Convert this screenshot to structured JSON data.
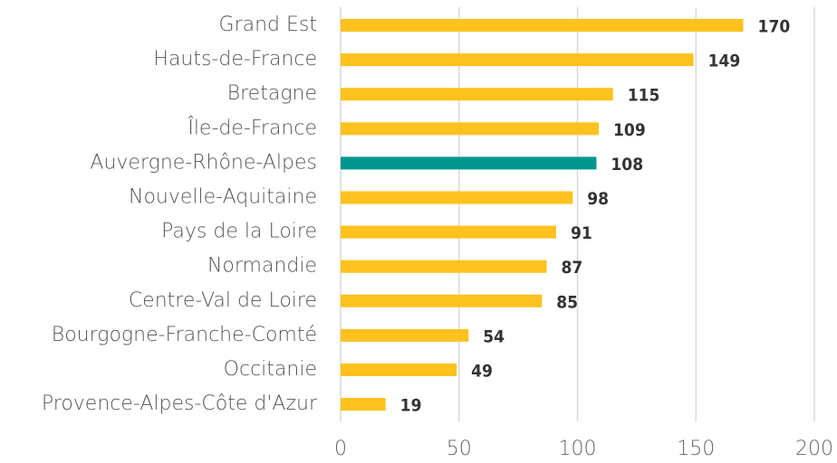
{
  "chart_data": {
    "type": "bar",
    "orientation": "horizontal",
    "categories": [
      "Grand Est",
      "Hauts-de-France",
      "Bretagne",
      "Île-de-France",
      "Auvergne-Rhône-Alpes",
      "Nouvelle-Aquitaine",
      "Pays de la Loire",
      "Normandie",
      "Centre-Val de Loire",
      "Bourgogne-Franche-Comté",
      "Occitanie",
      "Provence-Alpes-Côte d'Azur"
    ],
    "values": [
      170,
      149,
      115,
      109,
      108,
      98,
      91,
      87,
      85,
      54,
      49,
      19
    ],
    "colors": [
      "#fdc21d",
      "#fdc21d",
      "#fdc21d",
      "#fdc21d",
      "#00968f",
      "#fdc21d",
      "#fdc21d",
      "#fdc21d",
      "#fdc21d",
      "#fdc21d",
      "#fdc21d",
      "#fdc21d"
    ],
    "xlim": [
      0,
      200
    ],
    "xticks": [
      0,
      50,
      100,
      150,
      200
    ],
    "grid": true
  }
}
